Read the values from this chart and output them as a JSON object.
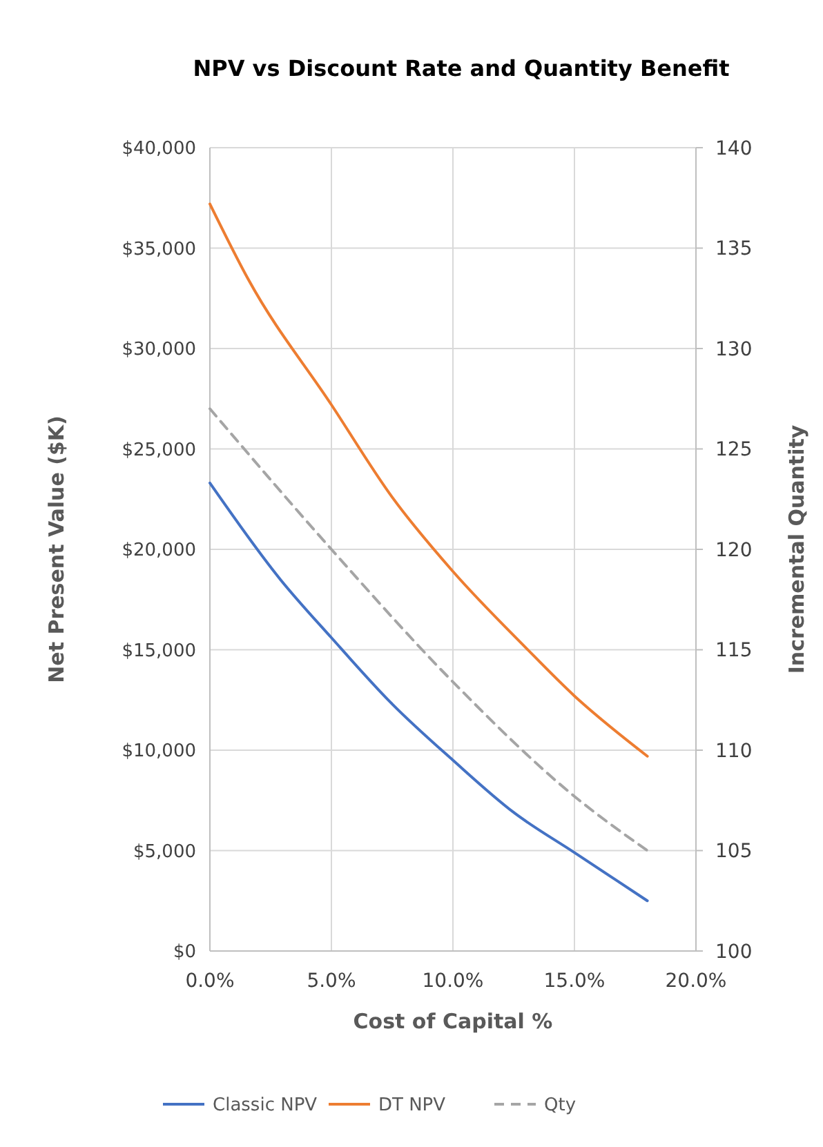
{
  "chart_data": {
    "type": "line",
    "title": "NPV vs Discount Rate and Quantity Benefit",
    "xlabel": "Cost of Capital %",
    "ylabel": "Net Present Value ($K)",
    "y2label": "Incremental Quantity",
    "xlim": [
      0,
      20
    ],
    "xticks": [
      {
        "value": 0,
        "label": "0.0%"
      },
      {
        "value": 5,
        "label": "5.0%"
      },
      {
        "value": 10,
        "label": "10.0%"
      },
      {
        "value": 15,
        "label": "15.0%"
      },
      {
        "value": 20,
        "label": "20.0%"
      }
    ],
    "ylim": [
      0,
      40000
    ],
    "yticks": [
      {
        "value": 0,
        "label": "$0"
      },
      {
        "value": 5000,
        "label": "$5,000"
      },
      {
        "value": 10000,
        "label": "$10,000"
      },
      {
        "value": 15000,
        "label": "$15,000"
      },
      {
        "value": 20000,
        "label": "$20,000"
      },
      {
        "value": 25000,
        "label": "$25,000"
      },
      {
        "value": 30000,
        "label": "$30,000"
      },
      {
        "value": 35000,
        "label": "$35,000"
      },
      {
        "value": 40000,
        "label": "$40,000"
      }
    ],
    "y2lim": [
      100,
      140
    ],
    "y2ticks": [
      100,
      105,
      110,
      115,
      120,
      125,
      130,
      135,
      140
    ],
    "grid": true,
    "legend": "bottom",
    "marker": "none",
    "series": [
      {
        "name": "Classic NPV",
        "color": "#4472c4",
        "x": [
          0,
          2.9,
          5,
          7.5,
          10,
          12.5,
          15,
          18
        ],
        "values": [
          23300,
          18500,
          15600,
          12300,
          9500,
          6900,
          4900,
          2500
        ]
      },
      {
        "name": "DT NPV",
        "color": "#ed7d31",
        "x": [
          0,
          1.6,
          5,
          7.5,
          10,
          13,
          15,
          18
        ],
        "values": [
          37200,
          33400,
          27200,
          22600,
          18900,
          15100,
          12700,
          9700
        ]
      },
      {
        "name": "Qty",
        "color": "#a5a5a5",
        "axis": "y2",
        "line_style": "dashed",
        "x": [
          0,
          5,
          10,
          15,
          18
        ],
        "values": [
          127,
          120,
          113.4,
          107.7,
          105
        ]
      }
    ]
  }
}
